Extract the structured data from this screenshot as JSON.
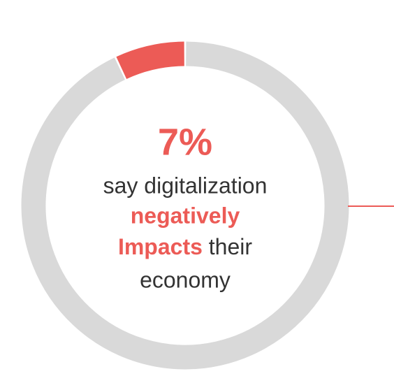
{
  "chart_data": {
    "type": "donut",
    "values": [
      7,
      93
    ],
    "value_labels": [
      "7%",
      null
    ],
    "colors": [
      "#ec5b56",
      "#d9d9d9"
    ],
    "caption": {
      "line1": "say digitalization",
      "highlight1": "negatively",
      "highlight2": "Impacts",
      "rest2": "their",
      "line4": "economy"
    }
  }
}
